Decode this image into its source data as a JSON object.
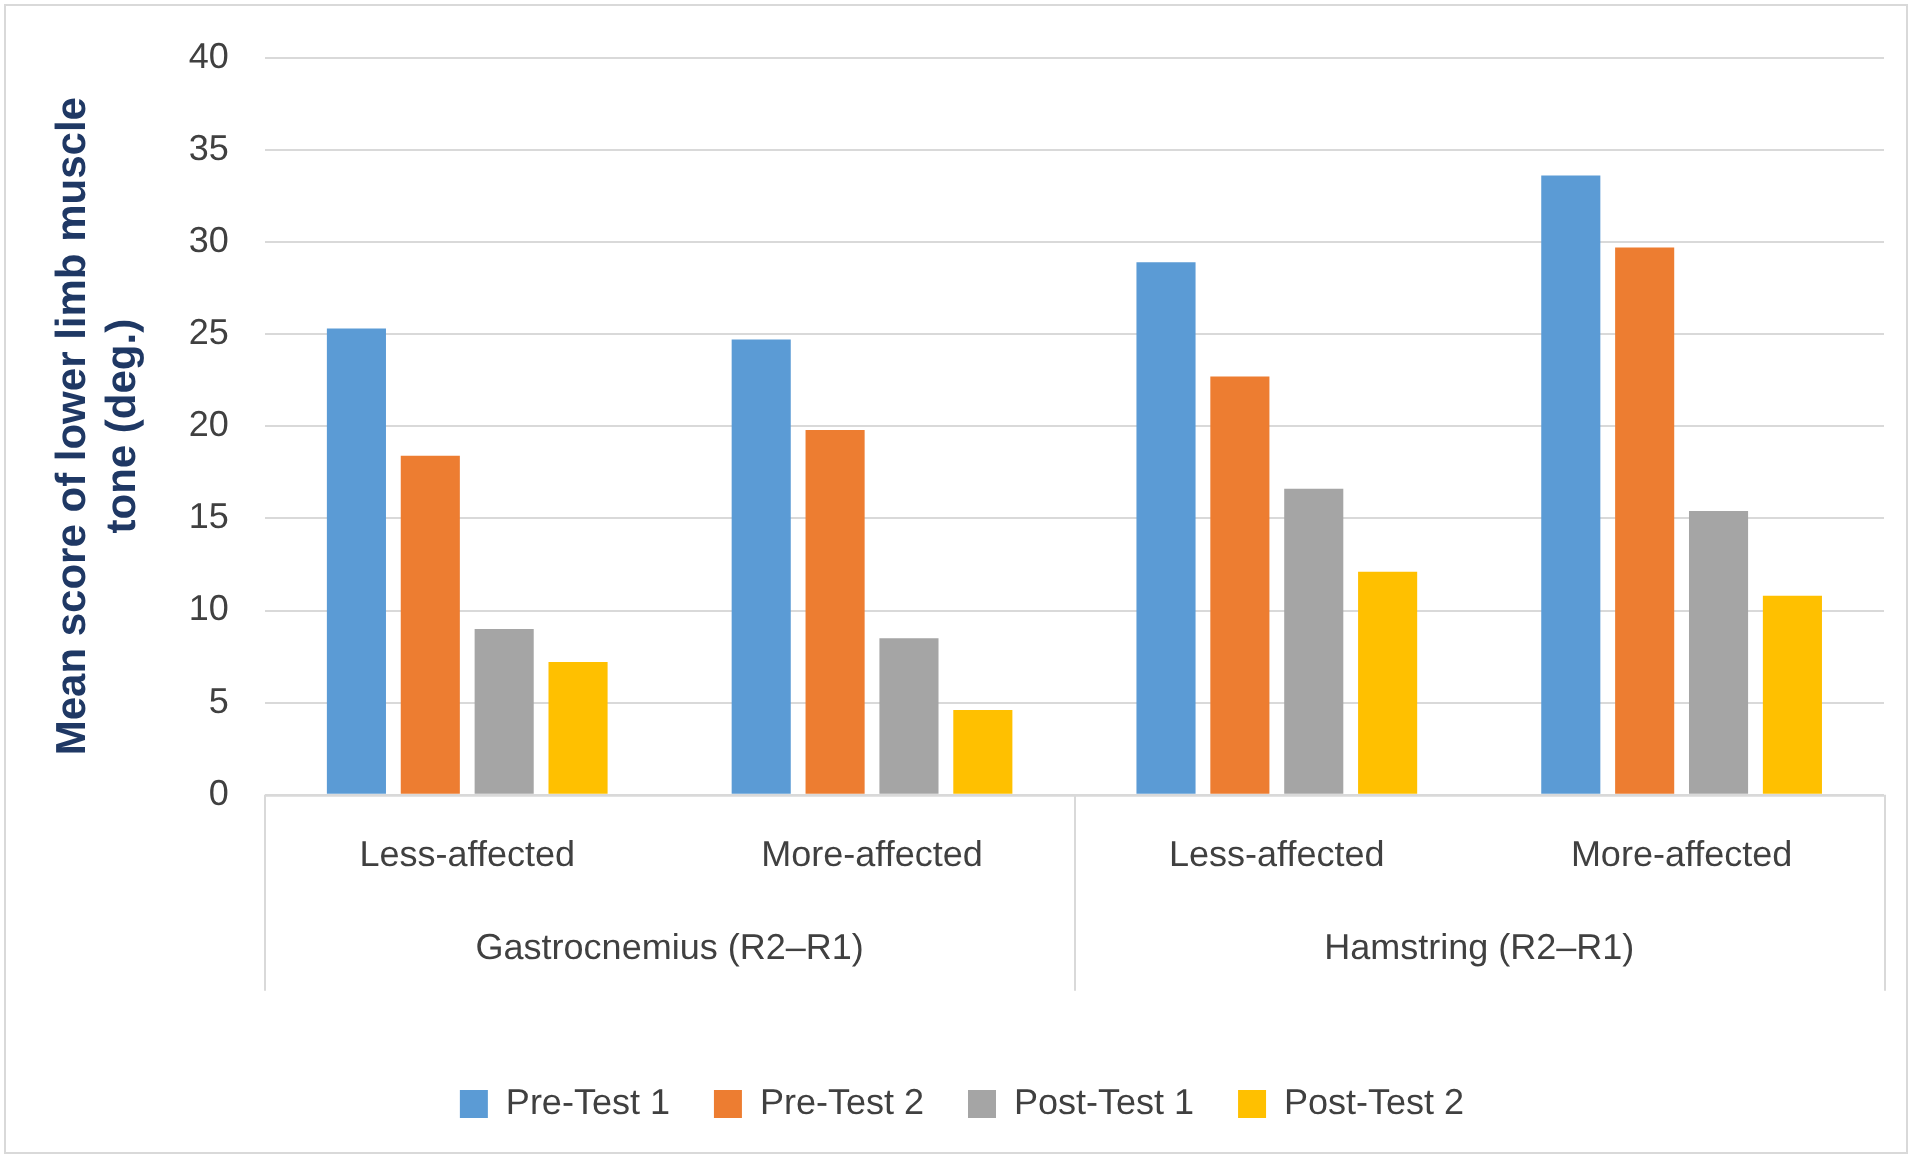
{
  "chart_data": {
    "type": "bar",
    "ylabel": "Mean score of lower limb muscle tone (deg.)",
    "categories": [
      "Less-affected",
      "More-affected",
      "Less-affected",
      "More-affected"
    ],
    "annotations": [
      "Gastrocnemius (R2–R1)",
      "Hamstring (R2–R1)"
    ],
    "series": [
      {
        "name": "Pre-Test 1",
        "color": "#5b9bd5",
        "values": [
          25.3,
          24.7,
          28.9,
          33.6
        ]
      },
      {
        "name": "Pre-Test 2",
        "color": "#ed7d31",
        "values": [
          18.4,
          19.8,
          22.7,
          29.7
        ]
      },
      {
        "name": "Post-Test 1",
        "color": "#a5a5a5",
        "values": [
          9.0,
          8.5,
          16.6,
          15.4
        ]
      },
      {
        "name": "Post-Test 2",
        "color": "#ffc000",
        "values": [
          7.2,
          4.6,
          12.1,
          10.8
        ]
      }
    ],
    "ylim": [
      0,
      40
    ],
    "yticks": [
      0,
      5,
      10,
      15,
      20,
      25,
      30,
      35,
      40
    ],
    "grid": "y",
    "legend": "bottom"
  }
}
